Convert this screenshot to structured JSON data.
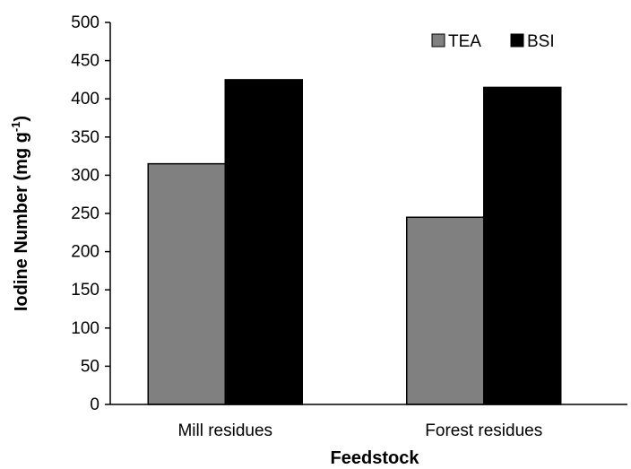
{
  "chart_data": {
    "type": "bar",
    "categories": [
      "Mill residues",
      "Forest residues"
    ],
    "series": [
      {
        "name": "TEA",
        "values": [
          315,
          245
        ],
        "color": "#808080"
      },
      {
        "name": "BSI",
        "values": [
          425,
          415
        ],
        "color": "#000000"
      }
    ],
    "xlabel": "Feedstock",
    "ylabel_main": "Iodine Number (mg g",
    "ylabel_sup": "-1",
    "ylabel_close": ")",
    "ylim": [
      0,
      500
    ],
    "yticks": [
      0,
      50,
      100,
      150,
      200,
      250,
      300,
      350,
      400,
      450,
      500
    ],
    "legend_position": "top-right",
    "grid": false
  }
}
